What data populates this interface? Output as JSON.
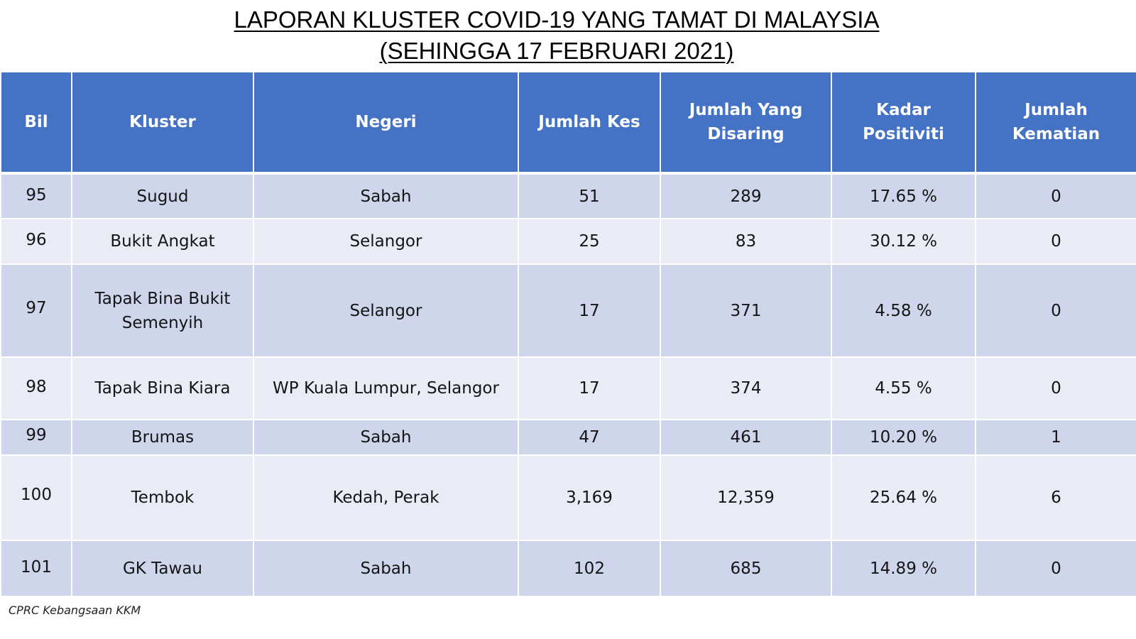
{
  "title": {
    "line1": "LAPORAN KLUSTER COVID-19 YANG TAMAT DI MALAYSIA",
    "line2": "(SEHINGGA  17 FEBRUARI 2021)"
  },
  "table": {
    "headers": {
      "bil": "Bil",
      "kluster": "Kluster",
      "negeri": "Negeri",
      "jumlah_kes": "Jumlah Kes",
      "jumlah_disaring": "Jumlah Yang Disaring",
      "kadar_positiviti": "Kadar Positiviti",
      "jumlah_kematian": "Jumlah Kematian"
    },
    "rows": [
      {
        "bil": "95",
        "kluster": "Sugud",
        "negeri": "Sabah",
        "kes": "51",
        "disaring": "289",
        "positiviti": "17.65 %",
        "kematian": "0"
      },
      {
        "bil": "96",
        "kluster": "Bukit Angkat",
        "negeri": "Selangor",
        "kes": "25",
        "disaring": "83",
        "positiviti": "30.12 %",
        "kematian": "0"
      },
      {
        "bil": "97",
        "kluster": "Tapak Bina Bukit Semenyih",
        "negeri": "Selangor",
        "kes": "17",
        "disaring": "371",
        "positiviti": "4.58 %",
        "kematian": "0"
      },
      {
        "bil": "98",
        "kluster": "Tapak Bina Kiara",
        "negeri": "WP Kuala Lumpur, Selangor",
        "kes": "17",
        "disaring": "374",
        "positiviti": "4.55 %",
        "kematian": "0"
      },
      {
        "bil": "99",
        "kluster": "Brumas",
        "negeri": "Sabah",
        "kes": "47",
        "disaring": "461",
        "positiviti": "10.20 %",
        "kematian": "1"
      },
      {
        "bil": "100",
        "kluster": "Tembok",
        "negeri": "Kedah, Perak",
        "kes": "3,169",
        "disaring": "12,359",
        "positiviti": "25.64 %",
        "kematian": "6"
      },
      {
        "bil": "101",
        "kluster": "GK Tawau",
        "negeri": "Sabah",
        "kes": "102",
        "disaring": "685",
        "positiviti": "14.89 %",
        "kematian": "0"
      }
    ]
  },
  "footer": {
    "source": "CPRC Kebangsaan KKM"
  },
  "colors": {
    "header_bg": "#4472c4",
    "row_dark": "#cfd5ea",
    "row_light": "#e9ebf5"
  }
}
